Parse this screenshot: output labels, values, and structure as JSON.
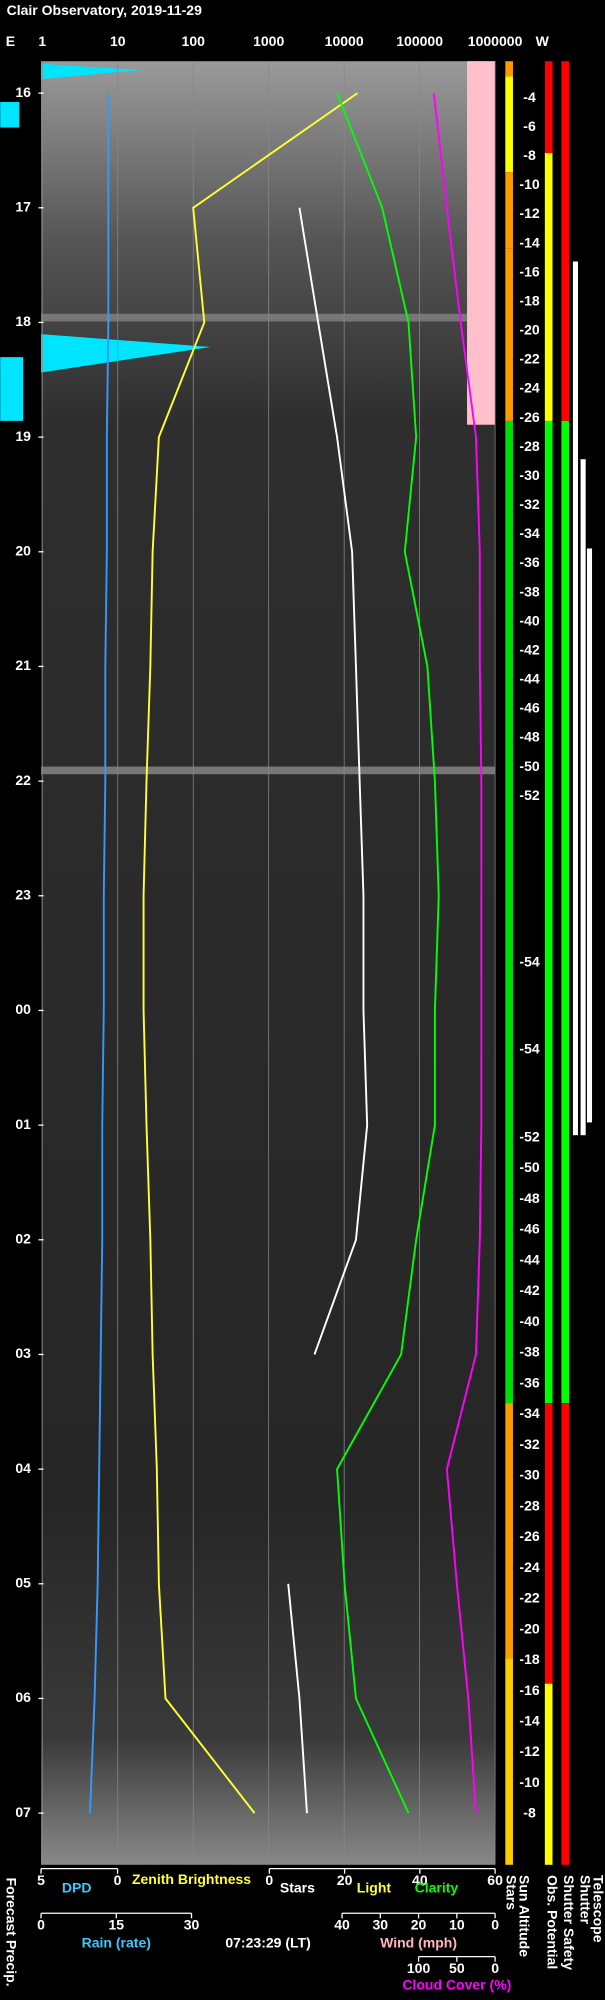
{
  "chart_data": {
    "type": "line",
    "title": "Clair Observatory, 2019-11-29",
    "edge_labels": [
      "E",
      "W"
    ],
    "categories": [
      "16",
      "17",
      "18",
      "19",
      "20",
      "21",
      "22",
      "23",
      "00",
      "01",
      "02",
      "03",
      "04",
      "05",
      "06",
      "07"
    ],
    "top_axis": {
      "log": true,
      "xlim": [
        1,
        1000000
      ],
      "xticks": [
        1,
        10,
        100,
        1000,
        10000,
        100000,
        1000000
      ],
      "grid": true
    },
    "scale_dpd": {
      "xlim": [
        5,
        0
      ],
      "xticks": [
        5,
        0
      ]
    },
    "scale_stars": {
      "xlim": [
        0,
        60
      ],
      "xticks": [
        0,
        20,
        40,
        60
      ],
      "extra_label": "Light"
    },
    "scale_rain": {
      "label": "Rain (rate)",
      "xlim": [
        0,
        30
      ],
      "xticks": [
        0,
        15,
        30
      ]
    },
    "scale_wind": {
      "label": "Wind (mph)",
      "xlim": [
        40,
        0
      ],
      "xticks": [
        40,
        30,
        20,
        10,
        0
      ]
    },
    "scale_cloud": {
      "xlim": [
        100,
        0
      ],
      "xticks": [
        100,
        50,
        0
      ]
    },
    "time_label": "07:23:29 (LT)",
    "left_label": "Forecast Precip.",
    "right_labels": [
      "Stars",
      "Sun Altitude",
      "Obs. Potential",
      "Shutter Safety",
      "Shutter",
      "Telescope"
    ],
    "sun_altitude": [
      -4,
      -6,
      -8,
      -10,
      -12,
      -14,
      -16,
      -18,
      -20,
      -22,
      -24,
      -26,
      -28,
      -30,
      -32,
      -34,
      -36,
      -38,
      -40,
      -42,
      -44,
      -46,
      -48,
      -50,
      -52,
      -54,
      -54,
      -52,
      -50,
      -48,
      -46,
      -44,
      -42,
      -40,
      -38,
      -36,
      -34,
      -32,
      -30,
      -28,
      -26,
      -24,
      -22,
      -20,
      -18,
      -16,
      -14,
      -12,
      -10,
      -8
    ],
    "series": [
      {
        "name": "DPD",
        "color": "#3399ff",
        "scale": "scale_dpd",
        "values": [
          0.6,
          0.6,
          0.6,
          0.7,
          0.7,
          0.8,
          0.8,
          0.9,
          0.9,
          1.0,
          1.0,
          1.1,
          1.2,
          1.3,
          1.5,
          1.8
        ]
      },
      {
        "name": "Zenith Brightness",
        "color": "#ffff33",
        "scale": "top_axis",
        "values": [
          15000,
          100,
          140,
          35,
          29,
          27,
          24,
          22,
          22,
          24,
          27,
          29,
          33,
          35,
          43,
          650
        ]
      },
      {
        "name": "Stars",
        "color": "#ffffff",
        "scale": "scale_stars",
        "values": [
          null,
          8,
          13,
          18,
          22,
          23,
          24,
          25,
          25,
          26,
          23,
          12,
          null,
          5,
          8,
          10
        ]
      },
      {
        "name": "Clarity",
        "color": "#00ff00",
        "scale": "scale_stars",
        "values": [
          18,
          30,
          37,
          39,
          36,
          42,
          44,
          45,
          44,
          44,
          39,
          35,
          18,
          20,
          23,
          37
        ]
      },
      {
        "name": "Cloud Cover (%)",
        "color": "#ff00ff",
        "scale": "scale_cloud",
        "values": [
          80,
          63,
          45,
          25,
          20,
          20,
          18,
          18,
          18,
          18,
          20,
          25,
          63,
          50,
          35,
          25
        ]
      }
    ]
  }
}
